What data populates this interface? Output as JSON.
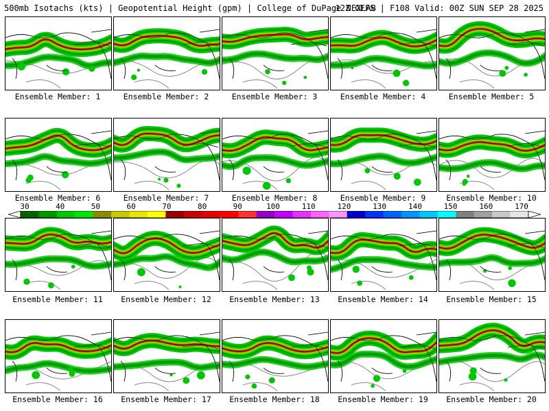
{
  "header": {
    "left_title": "500mb Isotachs (kts) | Geopotential Height (gpm) | College of DuPage NEXLAB",
    "right_title": "12Z GEFS | F108 Valid: 00Z SUN SEP 28 2025"
  },
  "members": [
    {
      "caption": "Ensemble Member: 1"
    },
    {
      "caption": "Ensemble Member: 2"
    },
    {
      "caption": "Ensemble Member: 3"
    },
    {
      "caption": "Ensemble Member: 4"
    },
    {
      "caption": "Ensemble Member: 5"
    },
    {
      "caption": "Ensemble Member: 6"
    },
    {
      "caption": "Ensemble Member: 7"
    },
    {
      "caption": "Ensemble Member: 8"
    },
    {
      "caption": "Ensemble Member: 9"
    },
    {
      "caption": "Ensemble Member: 10"
    },
    {
      "caption": "Ensemble Member: 11"
    },
    {
      "caption": "Ensemble Member: 12"
    },
    {
      "caption": "Ensemble Member: 13"
    },
    {
      "caption": "Ensemble Member: 14"
    },
    {
      "caption": "Ensemble Member: 15"
    },
    {
      "caption": "Ensemble Member: 16"
    },
    {
      "caption": "Ensemble Member: 17"
    },
    {
      "caption": "Ensemble Member: 18"
    },
    {
      "caption": "Ensemble Member: 19"
    },
    {
      "caption": "Ensemble Member: 20"
    }
  ],
  "color_scale": {
    "labels": [
      "30",
      "40",
      "50",
      "60",
      "70",
      "80",
      "90",
      "100",
      "110",
      "120",
      "130",
      "140",
      "150",
      "160",
      "170"
    ],
    "colors": [
      "#006400",
      "#009600",
      "#00c800",
      "#00e600",
      "#8c8c00",
      "#c8c800",
      "#e6e600",
      "#ffff00",
      "#960000",
      "#c80000",
      "#e60000",
      "#ff0000",
      "#ff3232",
      "#9600c8",
      "#c800ff",
      "#e632ff",
      "#ff64ff",
      "#ff96ff",
      "#0000c8",
      "#0032ff",
      "#0064ff",
      "#0096ff",
      "#00c8ff",
      "#00ffff",
      "#808080",
      "#a0a0a0",
      "#c8c8c8",
      "#e6e6e6"
    ]
  }
}
